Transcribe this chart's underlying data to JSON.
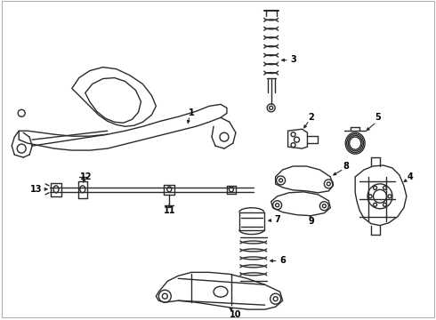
{
  "bg_color": "#ffffff",
  "lc": "#2a2a2a",
  "lw": 1.0,
  "fs": 7.0
}
